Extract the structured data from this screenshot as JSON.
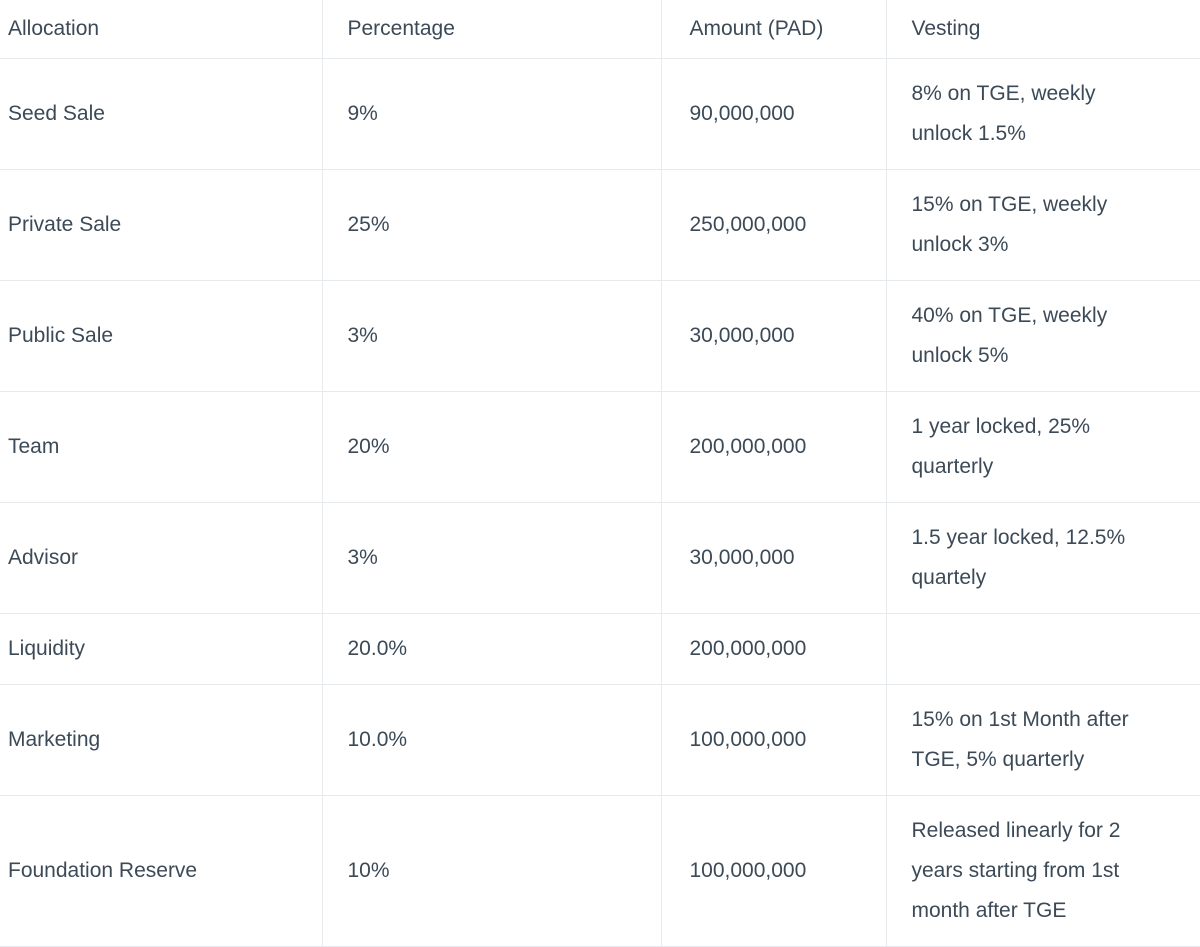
{
  "theme": {
    "text_color": "#3c4a57",
    "border_color": "#e7eaed",
    "background_color": "#ffffff"
  },
  "table": {
    "columns": [
      {
        "id": "allocation",
        "label": "Allocation"
      },
      {
        "id": "percentage",
        "label": "Percentage"
      },
      {
        "id": "amount",
        "label": "Amount (PAD)"
      },
      {
        "id": "vesting",
        "label": "Vesting"
      }
    ],
    "rows": [
      {
        "allocation": "Seed Sale",
        "percentage": "9%",
        "amount": "90,000,000",
        "vesting": "8% on TGE, weekly unlock 1.5%"
      },
      {
        "allocation": "Private Sale",
        "percentage": "25%",
        "amount": "250,000,000",
        "vesting": "15% on TGE, weekly unlock 3%"
      },
      {
        "allocation": "Public Sale",
        "percentage": "3%",
        "amount": "30,000,000",
        "vesting": "40% on TGE, weekly unlock 5%"
      },
      {
        "allocation": "Team",
        "percentage": "20%",
        "amount": "200,000,000",
        "vesting": "1 year locked, 25% quarterly"
      },
      {
        "allocation": "Advisor",
        "percentage": "3%",
        "amount": "30,000,000",
        "vesting": "1.5 year locked, 12.5% quartely"
      },
      {
        "allocation": "Liquidity",
        "percentage": "20.0%",
        "amount": "200,000,000",
        "vesting": ""
      },
      {
        "allocation": "Marketing",
        "percentage": "10.0%",
        "amount": "100,000,000",
        "vesting": "15% on 1st Month after TGE, 5% quarterly"
      },
      {
        "allocation": "Foundation Reserve",
        "percentage": "10%",
        "amount": "100,000,000",
        "vesting": "Released linearly for 2 years starting from 1st month after TGE"
      }
    ]
  }
}
